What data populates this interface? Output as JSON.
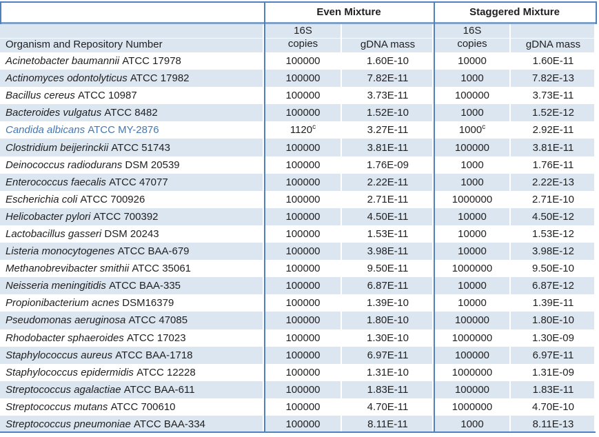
{
  "table": {
    "group_headers": {
      "even": "Even Mixture",
      "staggered": "Staggered Mixture"
    },
    "sub_headers": {
      "copies_line1": "16S",
      "copies_line2": "copies",
      "gdna": "gDNA mass"
    },
    "organism_header": "Organism and Repository Number",
    "colors": {
      "border": "#4F81BD",
      "stripe": "#DCE6F1",
      "highlight_text": "#4478B4"
    },
    "rows": [
      {
        "organism": "Acinetobacter baumannii",
        "repository": "ATCC 17978",
        "even_copies": "100000",
        "even_sup": "",
        "even_gdna": "1.60E-10",
        "stag_copies": "10000",
        "stag_sup": "",
        "stag_gdna": "1.60E-11",
        "highlight": false
      },
      {
        "organism": "Actinomyces odontolyticus",
        "repository": "ATCC 17982",
        "even_copies": "100000",
        "even_sup": "",
        "even_gdna": "7.82E-11",
        "stag_copies": "1000",
        "stag_sup": "",
        "stag_gdna": "7.82E-13",
        "highlight": false
      },
      {
        "organism": "Bacillus cereus",
        "repository": "ATCC 10987",
        "even_copies": "100000",
        "even_sup": "",
        "even_gdna": "3.73E-11",
        "stag_copies": "100000",
        "stag_sup": "",
        "stag_gdna": "3.73E-11",
        "highlight": false
      },
      {
        "organism": "Bacteroides vulgatus",
        "repository": "ATCC 8482",
        "even_copies": "100000",
        "even_sup": "",
        "even_gdna": "1.52E-10",
        "stag_copies": "1000",
        "stag_sup": "",
        "stag_gdna": "1.52E-12",
        "highlight": false
      },
      {
        "organism": "Candida albicans",
        "repository": "ATCC MY-2876",
        "even_copies": "1120",
        "even_sup": "c",
        "even_gdna": "3.27E-11",
        "stag_copies": "1000",
        "stag_sup": "c",
        "stag_gdna": "2.92E-11",
        "highlight": true
      },
      {
        "organism": "Clostridium beijerinckii",
        "repository": "ATCC 51743",
        "even_copies": "100000",
        "even_sup": "",
        "even_gdna": "3.81E-11",
        "stag_copies": "100000",
        "stag_sup": "",
        "stag_gdna": "3.81E-11",
        "highlight": false
      },
      {
        "organism": "Deinococcus radiodurans",
        "repository": "DSM 20539",
        "even_copies": "100000",
        "even_sup": "",
        "even_gdna": "1.76E-09",
        "stag_copies": "1000",
        "stag_sup": "",
        "stag_gdna": "1.76E-11",
        "highlight": false
      },
      {
        "organism": "Enterococcus faecalis",
        "repository": "ATCC 47077",
        "even_copies": "100000",
        "even_sup": "",
        "even_gdna": "2.22E-11",
        "stag_copies": "1000",
        "stag_sup": "",
        "stag_gdna": "2.22E-13",
        "highlight": false
      },
      {
        "organism": "Escherichia coli",
        "repository": "ATCC 700926",
        "even_copies": "100000",
        "even_sup": "",
        "even_gdna": "2.71E-11",
        "stag_copies": "1000000",
        "stag_sup": "",
        "stag_gdna": "2.71E-10",
        "highlight": false
      },
      {
        "organism": "Helicobacter pylori",
        "repository": "ATCC 700392",
        "even_copies": "100000",
        "even_sup": "",
        "even_gdna": "4.50E-11",
        "stag_copies": "10000",
        "stag_sup": "",
        "stag_gdna": "4.50E-12",
        "highlight": false
      },
      {
        "organism": "Lactobacillus gasseri",
        "repository": "DSM 20243",
        "even_copies": "100000",
        "even_sup": "",
        "even_gdna": "1.53E-11",
        "stag_copies": "10000",
        "stag_sup": "",
        "stag_gdna": "1.53E-12",
        "highlight": false
      },
      {
        "organism": "Listeria monocytogenes",
        "repository": "ATCC BAA-679",
        "even_copies": "100000",
        "even_sup": "",
        "even_gdna": "3.98E-11",
        "stag_copies": "10000",
        "stag_sup": "",
        "stag_gdna": "3.98E-12",
        "highlight": false
      },
      {
        "organism": "Methanobrevibacter smithii",
        "repository": "ATCC 35061",
        "even_copies": "100000",
        "even_sup": "",
        "even_gdna": "9.50E-11",
        "stag_copies": "1000000",
        "stag_sup": "",
        "stag_gdna": "9.50E-10",
        "highlight": false
      },
      {
        "organism": "Neisseria meningitidis",
        "repository": "ATCC BAA-335",
        "even_copies": "100000",
        "even_sup": "",
        "even_gdna": "6.87E-11",
        "stag_copies": "10000",
        "stag_sup": "",
        "stag_gdna": "6.87E-12",
        "highlight": false
      },
      {
        "organism": "Propionibacterium acnes",
        "repository": "DSM16379",
        "even_copies": "100000",
        "even_sup": "",
        "even_gdna": "1.39E-10",
        "stag_copies": "10000",
        "stag_sup": "",
        "stag_gdna": "1.39E-11",
        "highlight": false
      },
      {
        "organism": "Pseudomonas aeruginosa",
        "repository": "ATCC 47085",
        "even_copies": "100000",
        "even_sup": "",
        "even_gdna": "1.80E-10",
        "stag_copies": "100000",
        "stag_sup": "",
        "stag_gdna": "1.80E-10",
        "highlight": false
      },
      {
        "organism": "Rhodobacter sphaeroides",
        "repository": "ATCC 17023",
        "even_copies": "100000",
        "even_sup": "",
        "even_gdna": "1.30E-10",
        "stag_copies": "1000000",
        "stag_sup": "",
        "stag_gdna": "1.30E-09",
        "highlight": false
      },
      {
        "organism": "Staphylococcus aureus",
        "repository": "ATCC BAA-1718",
        "even_copies": "100000",
        "even_sup": "",
        "even_gdna": "6.97E-11",
        "stag_copies": "100000",
        "stag_sup": "",
        "stag_gdna": "6.97E-11",
        "highlight": false
      },
      {
        "organism": "Staphylococcus epidermidis",
        "repository": "ATCC 12228",
        "even_copies": "100000",
        "even_sup": "",
        "even_gdna": "1.31E-10",
        "stag_copies": "1000000",
        "stag_sup": "",
        "stag_gdna": "1.31E-09",
        "highlight": false
      },
      {
        "organism": "Streptococcus agalactiae",
        "repository": "ATCC BAA-611",
        "even_copies": "100000",
        "even_sup": "",
        "even_gdna": "1.83E-11",
        "stag_copies": "100000",
        "stag_sup": "",
        "stag_gdna": "1.83E-11",
        "highlight": false
      },
      {
        "organism": "Streptococcus mutans",
        "repository": "ATCC 700610",
        "even_copies": "100000",
        "even_sup": "",
        "even_gdna": "4.70E-11",
        "stag_copies": "1000000",
        "stag_sup": "",
        "stag_gdna": "4.70E-10",
        "highlight": false
      },
      {
        "organism": "Streptococcus pneumoniae",
        "repository": "ATCC BAA-334",
        "even_copies": "100000",
        "even_sup": "",
        "even_gdna": "8.11E-11",
        "stag_copies": "1000",
        "stag_sup": "",
        "stag_gdna": "8.11E-13",
        "highlight": false
      }
    ]
  }
}
